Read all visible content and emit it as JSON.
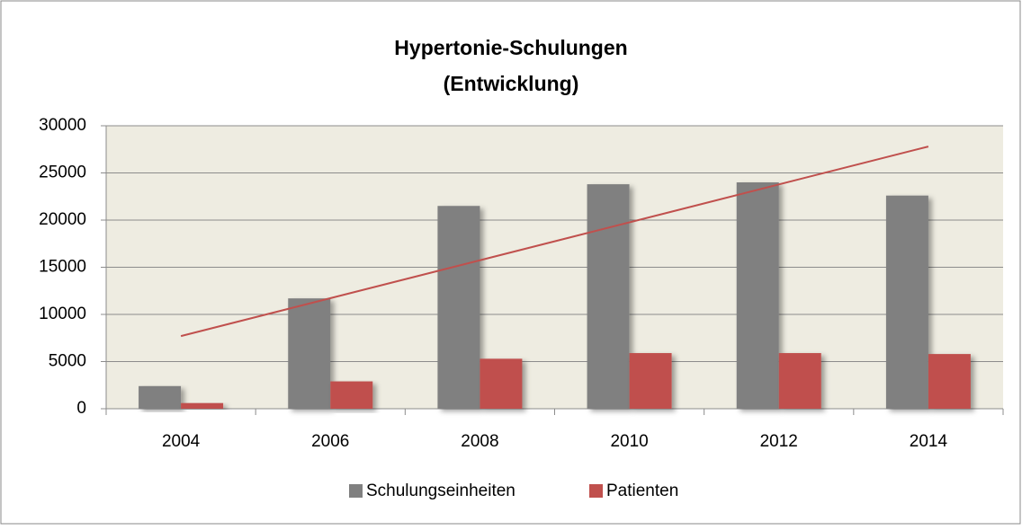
{
  "chart_data": {
    "type": "bar",
    "title": [
      "Hypertonie-Schulungen",
      "(Entwicklung)"
    ],
    "categories": [
      "2004",
      "2006",
      "2008",
      "2010",
      "2012",
      "2014"
    ],
    "series": [
      {
        "name": "Schulungseinheiten",
        "color": "#808080",
        "values": [
          2400,
          11700,
          21500,
          23800,
          24000,
          22600
        ]
      },
      {
        "name": "Patienten",
        "color": "#c0504d",
        "values": [
          600,
          2900,
          5300,
          5900,
          5900,
          5800
        ]
      }
    ],
    "trendline": {
      "color": "#c0504d",
      "values": [
        7700,
        27800
      ]
    },
    "ylim": [
      0,
      30000
    ],
    "yticks": [
      0,
      5000,
      10000,
      15000,
      20000,
      25000,
      30000
    ],
    "grid": true,
    "legend": "bottom"
  }
}
